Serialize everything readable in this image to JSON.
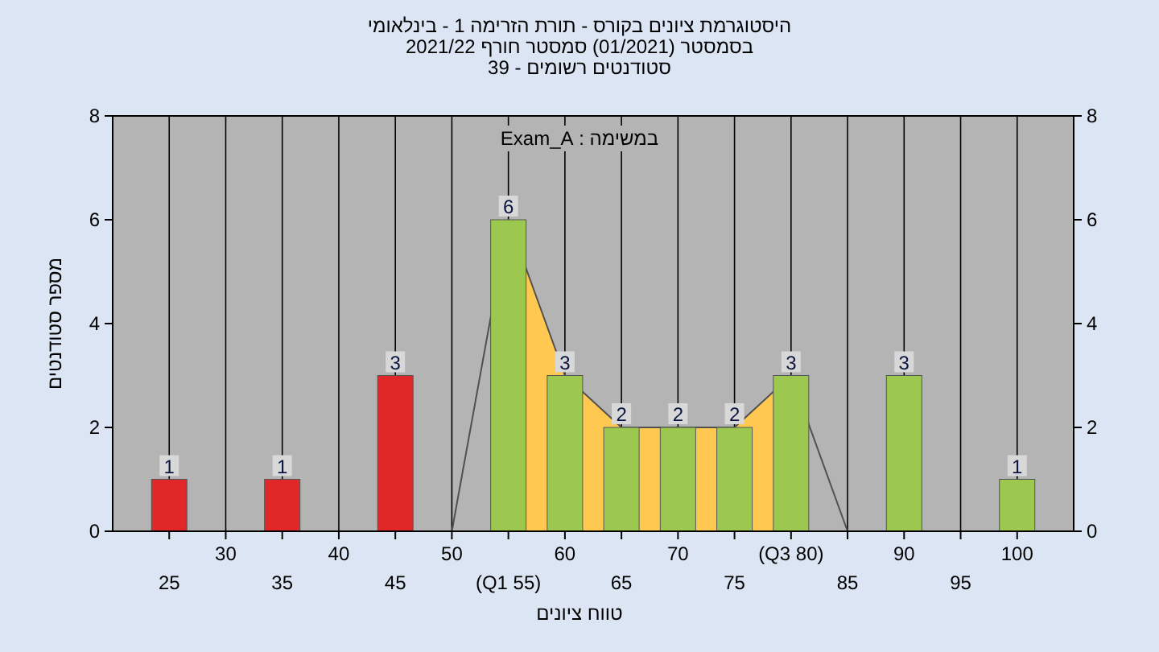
{
  "chart_data": {
    "type": "bar",
    "title": "היסטוגרמת ציונים בקורס - תורת הזרימה 1 - בינלאומי",
    "subtitle": "בסמסטר  (01/2021)  סמסטר חורף 2021/22\nסטודנטים רשומים - 39",
    "xlabel": "טווח ציונים",
    "ylabel": "מספר סטודנטים",
    "annotations": [
      "במשימה : Exam_A"
    ],
    "categories": [
      "25",
      "30",
      "35",
      "40",
      "45",
      "50",
      "(Q1 55)",
      "60",
      "65",
      "70",
      "75",
      "(Q3 80)",
      "85",
      "90",
      "95",
      "100"
    ],
    "series": [
      {
        "type": "area",
        "color": "#ffc850",
        "values": [
          null,
          null,
          null,
          null,
          null,
          null,
          6,
          3,
          2,
          2,
          2,
          3,
          null,
          null,
          null,
          null
        ]
      },
      {
        "type": "line",
        "color": "#505050",
        "values": [
          null,
          null,
          null,
          null,
          null,
          0,
          6,
          3,
          2,
          2,
          2,
          3,
          0,
          null,
          null,
          null
        ]
      },
      {
        "type": "bar",
        "colors": [
          "#e02828",
          null,
          "#e02828",
          null,
          "#e02828",
          null,
          "#9cc850",
          "#9cc850",
          "#9cc850",
          "#9cc850",
          "#9cc850",
          "#9cc850",
          null,
          "#9cc850",
          null,
          "#9cc850"
        ],
        "values": [
          1,
          null,
          1,
          null,
          3,
          null,
          6,
          3,
          2,
          2,
          2,
          3,
          null,
          3,
          null,
          1
        ],
        "value_labels": [
          "1",
          null,
          "1",
          null,
          "3",
          null,
          "6",
          "3",
          "2",
          "2",
          "2",
          "3",
          null,
          "3",
          null,
          "1"
        ]
      }
    ],
    "ylim": [
      0,
      8
    ],
    "yticks": [
      0,
      2,
      4,
      6,
      8
    ],
    "y2lim": [
      0,
      8
    ],
    "y2ticks": [
      0,
      2,
      4,
      6,
      8
    ],
    "grid": "x"
  }
}
